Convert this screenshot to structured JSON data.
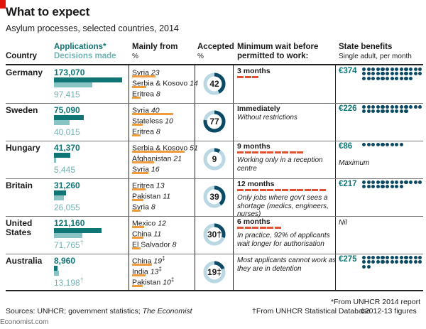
{
  "title": "What to expect",
  "subtitle": "Asylum processes, selected countries, 2014",
  "headers": {
    "country": "Country",
    "applications": "Applications*",
    "decisions": "Decisions made",
    "origin_1": "Mainly from",
    "origin_2": "%",
    "accepted_1": "Accepted",
    "accepted_2": "%",
    "wait_1": "Minimum wait before",
    "wait_2": "permitted to work:",
    "benefits_1": "State benefits",
    "benefits_2": "Single adult, per month"
  },
  "colors": {
    "applications": "#0f7675",
    "decisions": "#88c4c3",
    "origin": "#f19c3c",
    "wait": "#e05233",
    "benefit_dots": "#0a4a64",
    "accent_red": "#e3120b"
  },
  "chart_data": {
    "type": "table",
    "rows": [
      {
        "country": "Germany",
        "applications": 173070,
        "applications_label": "173,070",
        "decisions": 97415,
        "decisions_label": "97,415",
        "decisions_mark": "",
        "origins": [
          {
            "name": "Syria",
            "pct": 23,
            "mark": ""
          },
          {
            "name": "Serbia & Kosovo",
            "pct": 14,
            "mark": ""
          },
          {
            "name": "Eritrea",
            "pct": 8,
            "mark": ""
          }
        ],
        "accepted": 42,
        "wait": "3 months",
        "wait_months": 3,
        "wait_note": "",
        "benefit": "€374",
        "benefit_value": 374,
        "benefit_note": ""
      },
      {
        "country": "Sweden",
        "applications": 75090,
        "applications_label": "75,090",
        "decisions": 40015,
        "decisions_label": "40,015",
        "decisions_mark": "",
        "origins": [
          {
            "name": "Syria",
            "pct": 40,
            "mark": ""
          },
          {
            "name": "Stateless",
            "pct": 10,
            "mark": ""
          },
          {
            "name": "Eritrea",
            "pct": 8,
            "mark": ""
          }
        ],
        "accepted": 77,
        "wait": "Immediately",
        "wait_months": 0,
        "wait_note": "Without restrictions",
        "benefit": "€226",
        "benefit_value": 226,
        "benefit_note": ""
      },
      {
        "country": "Hungary",
        "applications": 41370,
        "applications_label": "41,370",
        "decisions": 5445,
        "decisions_label": "5,445",
        "decisions_mark": "",
        "origins": [
          {
            "name": "Serbia & Kosovo",
            "pct": 51,
            "mark": ""
          },
          {
            "name": "Afghanistan",
            "pct": 21,
            "mark": ""
          },
          {
            "name": "Syria",
            "pct": 16,
            "mark": ""
          }
        ],
        "accepted": 9,
        "wait": "9 months",
        "wait_months": 9,
        "wait_note": "Working only in a reception centre",
        "benefit": "€86",
        "benefit_value": 86,
        "benefit_note": "Maximum"
      },
      {
        "country": "Britain",
        "applications": 31260,
        "applications_label": "31,260",
        "decisions": 26055,
        "decisions_label": "26,055",
        "decisions_mark": "",
        "origins": [
          {
            "name": "Eritrea",
            "pct": 13,
            "mark": ""
          },
          {
            "name": "Pakistan",
            "pct": 11,
            "mark": ""
          },
          {
            "name": "Syria",
            "pct": 8,
            "mark": ""
          }
        ],
        "accepted": 39,
        "wait": "12 months",
        "wait_months": 12,
        "wait_note": "Only jobs where gov't sees a shortage (medics, engineers, nurses)",
        "benefit": "€217",
        "benefit_value": 217,
        "benefit_note": ""
      },
      {
        "country": "United States",
        "applications": 121160,
        "applications_label": "121,160",
        "decisions": 71765,
        "decisions_label": "71,765",
        "decisions_mark": "†",
        "origins": [
          {
            "name": "Mexico",
            "pct": 12,
            "mark": ""
          },
          {
            "name": "China",
            "pct": 11,
            "mark": ""
          },
          {
            "name": "El Salvador",
            "pct": 8,
            "mark": ""
          }
        ],
        "accepted": 30,
        "accepted_mark": "†",
        "wait": "6 months",
        "wait_months": 6,
        "wait_note": "In practice, 92% of applicants wait longer for authorisation",
        "benefit": "",
        "benefit_value": 0,
        "benefit_note": "Nil"
      },
      {
        "country": "Australia",
        "applications": 8960,
        "applications_label": "8,960",
        "decisions": 13198,
        "decisions_label": "13,198",
        "decisions_mark": "†",
        "origins": [
          {
            "name": "China",
            "pct": 19,
            "mark": "‡"
          },
          {
            "name": "India",
            "pct": 13,
            "mark": "‡"
          },
          {
            "name": "Pakistan",
            "pct": 10,
            "mark": "‡"
          }
        ],
        "accepted": 19,
        "accepted_mark": "‡",
        "wait": "",
        "wait_months": 0,
        "wait_note": "Most applicants cannot work as they are in detention",
        "benefit": "€275",
        "benefit_value": 275,
        "benefit_note": ""
      }
    ]
  },
  "footnotes": {
    "sources": "Sources: UNHCR; government statistics; ",
    "sources_italic": "The Economist",
    "note1": "*From UNHCR 2014 report",
    "note2": "†From UNHCR Statistical Database",
    "note3": "‡2012-13 figures"
  },
  "brand": "Economist.com"
}
